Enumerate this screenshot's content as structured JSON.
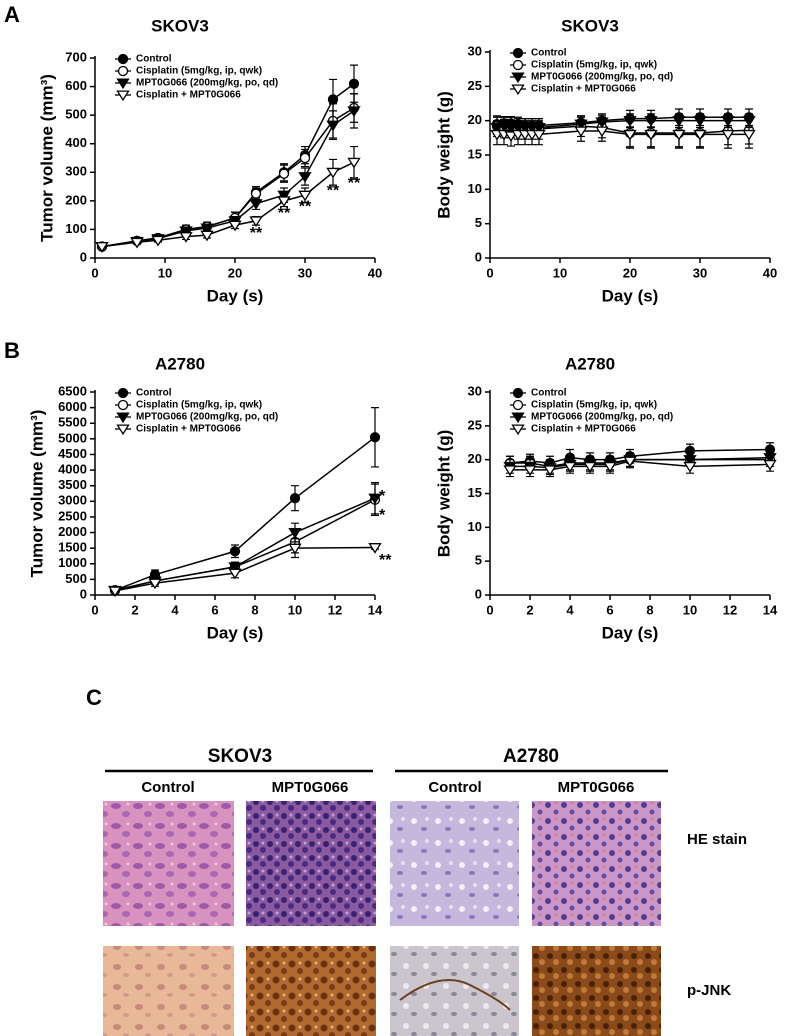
{
  "panel_labels": [
    "A",
    "B",
    "C"
  ],
  "chart_data": [
    {
      "type": "line",
      "title": "SKOV3",
      "x_label": "Day (s)",
      "y_label": "Tumor volume (mm³)",
      "xlim": [
        0,
        40
      ],
      "xticks": [
        0,
        10,
        20,
        30,
        40
      ],
      "ylim": [
        0,
        700
      ],
      "yticks": [
        0,
        100,
        200,
        300,
        400,
        500,
        600,
        700
      ],
      "legend": "upper left",
      "x": [
        1,
        6,
        9,
        13,
        16,
        20,
        23,
        27,
        30,
        34,
        37
      ],
      "series": [
        {
          "name": "Control",
          "color": "#000000",
          "marker": "circle",
          "filled": true,
          "values": [
            40,
            60,
            70,
            100,
            110,
            140,
            230,
            300,
            360,
            555,
            610
          ],
          "errors": [
            5,
            8,
            8,
            15,
            15,
            20,
            20,
            30,
            30,
            70,
            65
          ]
        },
        {
          "name": "Cisplatin (5mg/kg, ip, qwk)",
          "color": "#000000",
          "marker": "circle",
          "filled": false,
          "values": [
            40,
            60,
            70,
            100,
            110,
            140,
            225,
            295,
            350,
            480,
            525
          ],
          "errors": [
            5,
            8,
            8,
            15,
            15,
            20,
            20,
            30,
            30,
            60,
            50
          ]
        },
        {
          "name": "MPT0G066 (200mg/kg, po, qd)",
          "color": "#000000",
          "marker": "triangle",
          "filled": true,
          "values": [
            40,
            58,
            68,
            95,
            105,
            130,
            190,
            220,
            285,
            465,
            515
          ],
          "errors": [
            5,
            8,
            8,
            12,
            12,
            15,
            20,
            25,
            30,
            50,
            60
          ]
        },
        {
          "name": "Cisplatin + MPT0G066",
          "color": "#000000",
          "marker": "triangle",
          "filled": false,
          "values": [
            40,
            55,
            62,
            75,
            80,
            115,
            130,
            200,
            220,
            300,
            335
          ],
          "errors": [
            5,
            6,
            6,
            10,
            10,
            12,
            15,
            20,
            25,
            45,
            55
          ]
        }
      ],
      "annotations": [
        {
          "text": "**",
          "x": 23,
          "y": 98
        },
        {
          "text": "**",
          "x": 27,
          "y": 168
        },
        {
          "text": "**",
          "x": 30,
          "y": 192
        },
        {
          "text": "**",
          "x": 34,
          "y": 248
        },
        {
          "text": "**",
          "x": 37,
          "y": 273
        }
      ]
    },
    {
      "type": "line",
      "title": "SKOV3",
      "x_label": "Day (s)",
      "y_label": "Body weight (g)",
      "xlim": [
        0,
        40
      ],
      "xticks": [
        0,
        10,
        20,
        30,
        40
      ],
      "ylim": [
        0,
        30
      ],
      "yticks": [
        0,
        5,
        10,
        15,
        20,
        25,
        30
      ],
      "legend": "upper left",
      "x": [
        1,
        2,
        3,
        4,
        5,
        6,
        7,
        13,
        16,
        20,
        23,
        27,
        30,
        34,
        37
      ],
      "series": [
        {
          "name": "Control",
          "color": "#000000",
          "marker": "circle",
          "filled": true,
          "values": [
            19.5,
            19.6,
            19.6,
            19.5,
            19.3,
            19.3,
            19.3,
            19.7,
            20.0,
            20.3,
            20.3,
            20.5,
            20.5,
            20.5,
            20.5
          ],
          "errors": [
            1.0,
            1.0,
            1.0,
            1.0,
            1.0,
            1.0,
            1.0,
            1.0,
            1.0,
            1.2,
            1.2,
            1.2,
            1.2,
            1.2,
            1.2
          ]
        },
        {
          "name": "Cisplatin (5mg/kg, ip, qwk)",
          "color": "#000000",
          "marker": "circle",
          "filled": false,
          "values": [
            19.2,
            19.0,
            19.0,
            18.8,
            18.8,
            18.8,
            18.8,
            19.2,
            19.0,
            18.2,
            18.2,
            18.2,
            18.2,
            18.5,
            18.6
          ],
          "errors": [
            1.5,
            1.5,
            1.5,
            1.5,
            1.5,
            1.5,
            1.5,
            1.5,
            1.5,
            2.0,
            2.0,
            2.0,
            2.0,
            2.0,
            2.0
          ]
        },
        {
          "name": "MPT0G066 (200mg/kg, po, qd)",
          "color": "#000000",
          "marker": "triangle",
          "filled": true,
          "values": [
            19.0,
            19.2,
            19.0,
            19.0,
            19.0,
            19.0,
            19.0,
            19.5,
            19.8,
            20.0,
            20.0,
            20.0,
            20.0,
            20.0,
            20.0
          ],
          "errors": [
            1.0,
            1.0,
            1.0,
            1.0,
            1.0,
            1.0,
            1.0,
            1.0,
            1.0,
            1.0,
            1.0,
            1.0,
            1.0,
            1.0,
            1.0
          ]
        },
        {
          "name": "Cisplatin + MPT0G066",
          "color": "#000000",
          "marker": "triangle",
          "filled": false,
          "values": [
            18.0,
            18.0,
            17.8,
            18.0,
            18.0,
            18.0,
            18.0,
            18.5,
            18.5,
            18.0,
            18.0,
            18.0,
            18.0,
            18.0,
            18.0
          ],
          "errors": [
            1.5,
            1.5,
            1.5,
            1.5,
            1.5,
            1.5,
            1.5,
            1.5,
            1.5,
            2.0,
            2.0,
            2.0,
            2.0,
            2.0,
            2.0
          ]
        }
      ]
    },
    {
      "type": "line",
      "title": "A2780",
      "x_label": "Day (s)",
      "y_label": "Tumor volume (mm³)",
      "xlim": [
        0,
        14
      ],
      "xticks": [
        0,
        2,
        4,
        6,
        8,
        10,
        12,
        14
      ],
      "ylim": [
        0,
        6500
      ],
      "yticks": [
        0,
        500,
        1000,
        1500,
        2000,
        2500,
        3000,
        3500,
        4000,
        4500,
        5000,
        5500,
        6000,
        6500
      ],
      "legend": "upper left",
      "x": [
        1,
        3,
        7,
        10,
        14
      ],
      "series": [
        {
          "name": "Control",
          "color": "#000000",
          "marker": "circle",
          "filled": true,
          "values": [
            150,
            650,
            1400,
            3100,
            5050
          ],
          "errors": [
            50,
            150,
            200,
            400,
            950
          ]
        },
        {
          "name": "Cisplatin (5mg/kg, ip, qwk)",
          "color": "#000000",
          "marker": "circle",
          "filled": false,
          "values": [
            150,
            450,
            900,
            1700,
            3050
          ],
          "errors": [
            50,
            100,
            150,
            350,
            500
          ]
        },
        {
          "name": "MPT0G066 (200mg/kg, po, qd)",
          "color": "#000000",
          "marker": "triangle",
          "filled": true,
          "values": [
            150,
            450,
            900,
            2000,
            3100
          ],
          "errors": [
            50,
            100,
            150,
            300,
            500
          ]
        },
        {
          "name": "Cisplatin + MPT0G066",
          "color": "#000000",
          "marker": "triangle",
          "filled": false,
          "values": [
            130,
            380,
            700,
            1500,
            1520
          ],
          "errors": [
            30,
            100,
            150,
            300,
            50
          ]
        }
      ],
      "annotations": [
        {
          "text": "*",
          "x": 14,
          "y": 3266
        },
        {
          "text": "*",
          "x": 14,
          "y": 2658
        },
        {
          "text": "**",
          "x": 14,
          "y": 1217
        }
      ]
    },
    {
      "type": "line",
      "title": "A2780",
      "x_label": "Day (s)",
      "y_label": "Body weight (g)",
      "xlim": [
        0,
        14
      ],
      "xticks": [
        0,
        2,
        4,
        6,
        8,
        10,
        12,
        14
      ],
      "ylim": [
        0,
        30
      ],
      "yticks": [
        0,
        5,
        10,
        15,
        20,
        25,
        30
      ],
      "legend": "upper left",
      "x": [
        1,
        2,
        3,
        4,
        5,
        6,
        7,
        10,
        14
      ],
      "series": [
        {
          "name": "Control",
          "color": "#000000",
          "marker": "circle",
          "filled": true,
          "values": [
            19.5,
            19.8,
            19.5,
            20.3,
            20.0,
            20.0,
            20.5,
            21.3,
            21.5
          ],
          "errors": [
            1.0,
            1.0,
            1.0,
            1.2,
            1.0,
            1.0,
            1.0,
            1.0,
            1.0
          ]
        },
        {
          "name": "Cisplatin (5mg/kg, ip, qwk)",
          "color": "#000000",
          "marker": "circle",
          "filled": false,
          "values": [
            19.5,
            19.5,
            19.0,
            19.5,
            19.5,
            19.5,
            20.0,
            20.0,
            20.0
          ],
          "errors": [
            1.0,
            1.0,
            1.0,
            1.0,
            1.0,
            1.0,
            1.0,
            1.0,
            1.0
          ]
        },
        {
          "name": "MPT0G066 (200mg/kg, po, qd)",
          "color": "#000000",
          "marker": "triangle",
          "filled": true,
          "values": [
            19.0,
            19.0,
            18.8,
            19.3,
            19.3,
            19.3,
            20.0,
            20.0,
            20.3
          ],
          "errors": [
            1.0,
            1.0,
            1.0,
            1.0,
            1.0,
            1.0,
            1.0,
            1.0,
            1.0
          ]
        },
        {
          "name": "Cisplatin + MPT0G066",
          "color": "#000000",
          "marker": "triangle",
          "filled": false,
          "values": [
            18.5,
            18.5,
            18.5,
            19.0,
            19.0,
            19.0,
            19.8,
            19.0,
            19.3
          ],
          "errors": [
            1.0,
            1.0,
            1.0,
            1.0,
            1.0,
            1.0,
            1.0,
            1.0,
            1.0
          ]
        }
      ]
    }
  ],
  "histology": {
    "groups": [
      {
        "title": "SKOV3",
        "columns": [
          "Control",
          "MPT0G066"
        ]
      },
      {
        "title": "A2780",
        "columns": [
          "Control",
          "MPT0G066"
        ]
      }
    ],
    "rows": [
      "HE stain",
      "p-JNK"
    ]
  }
}
